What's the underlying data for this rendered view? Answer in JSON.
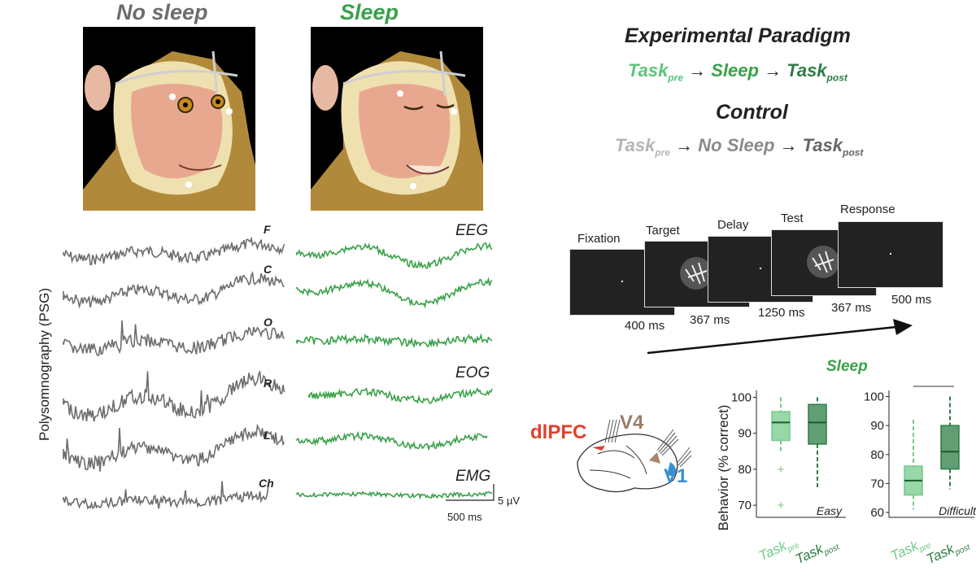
{
  "panels": {
    "no_sleep_title": "No sleep",
    "sleep_title": "Sleep"
  },
  "paradigm": {
    "title": "Experimental Paradigm",
    "task_pre": "Task",
    "pre_sub": "pre",
    "sleep": "Sleep",
    "task_post": "Task",
    "post_sub": "post",
    "control_title": "Control",
    "no_sleep": "No Sleep",
    "arrow": "→"
  },
  "psg": {
    "ylabel": "Polysomnography (PSG)",
    "channels_left": [
      "F",
      "C",
      "O",
      "R",
      "L",
      "Ch"
    ],
    "channels_right": [
      "EEG",
      "EOG",
      "EMG"
    ],
    "scale_y": "5 µV",
    "scale_x": "500 ms"
  },
  "task_sequence": {
    "frames": [
      "Fixation",
      "Target",
      "Delay",
      "Test",
      "Response"
    ],
    "durations": [
      "400 ms",
      "367 ms",
      "1250 ms",
      "367 ms",
      "500 ms"
    ]
  },
  "brain": {
    "labels": [
      "dlPFC",
      "V4",
      "V1"
    ]
  },
  "behavior": {
    "title": "Sleep",
    "ylabel": "Behavior  (% correct)",
    "easy_label": "Easy",
    "difficult_label": "Difficult",
    "sig_marker": "*",
    "xticks": [
      "Task",
      "Task"
    ],
    "xsubs": [
      "pre",
      "post"
    ],
    "easy_yticks": [
      "100",
      "90",
      "80",
      "70"
    ],
    "difficult_yticks": [
      "100",
      "90",
      "80",
      "70",
      "60"
    ]
  },
  "chart_data": [
    {
      "type": "box",
      "panel": "Easy",
      "categories": [
        "Task pre",
        "Task post"
      ],
      "ylim": [
        68,
        101
      ],
      "boxes": [
        {
          "whisker_low": 85,
          "q1": 88,
          "median": 93,
          "q3": 96,
          "whisker_high": 100,
          "outliers": [
            80,
            70
          ],
          "color": "#74c98b"
        },
        {
          "whisker_low": 75,
          "q1": 87,
          "median": 93,
          "q3": 98,
          "whisker_high": 100,
          "outliers": [],
          "color": "#2e7d44"
        }
      ]
    },
    {
      "type": "box",
      "panel": "Difficult",
      "categories": [
        "Task pre",
        "Task post"
      ],
      "ylim": [
        60,
        101
      ],
      "boxes": [
        {
          "whisker_low": 61,
          "q1": 66,
          "median": 71,
          "q3": 76,
          "whisker_high": 92,
          "outliers": [],
          "color": "#74c98b"
        },
        {
          "whisker_low": 68,
          "q1": 75,
          "median": 81,
          "q3": 90,
          "whisker_high": 100,
          "outliers": [],
          "color": "#2e7d44"
        }
      ]
    }
  ]
}
